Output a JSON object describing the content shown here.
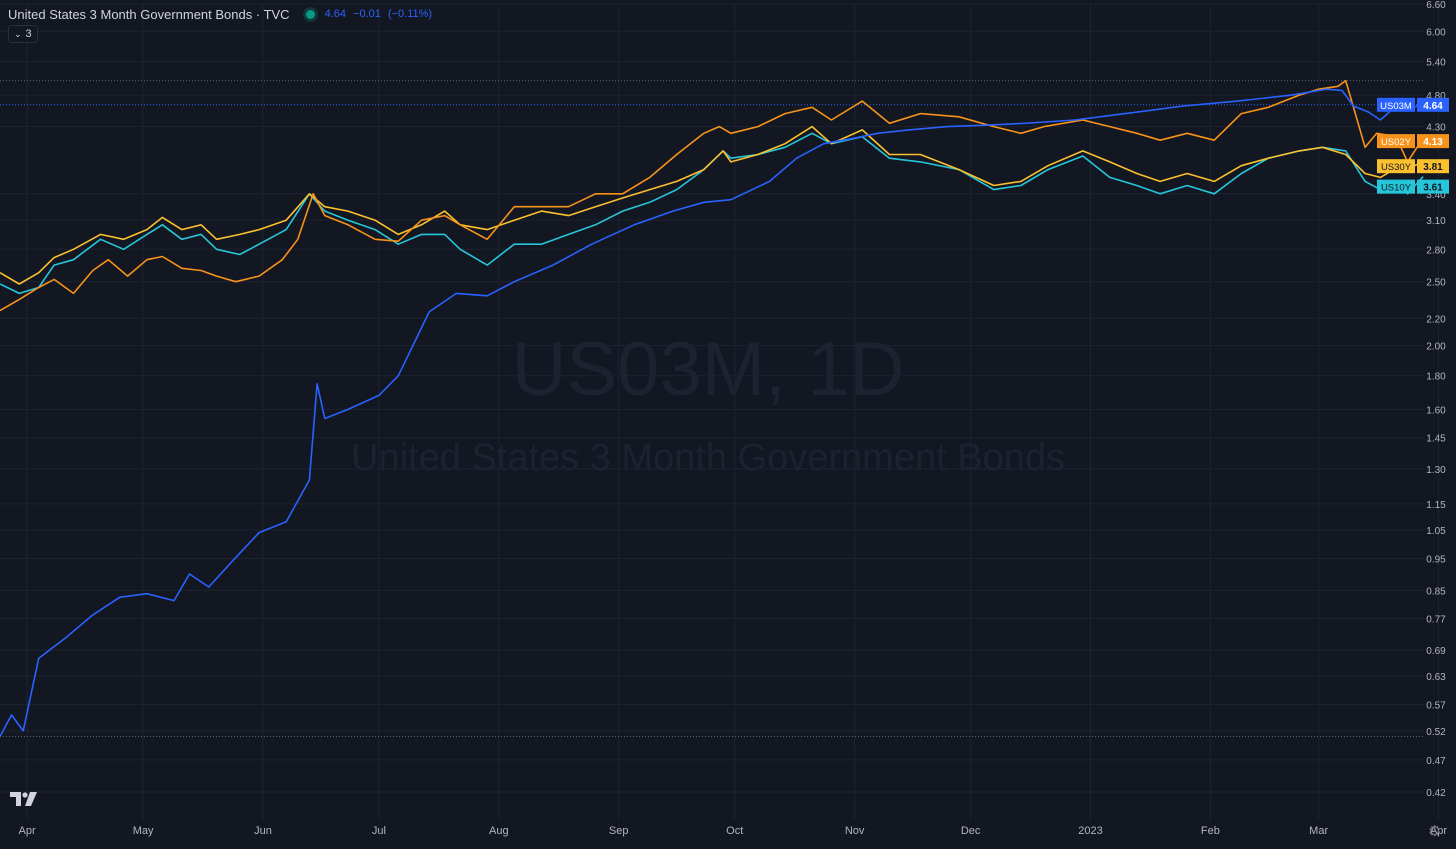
{
  "header": {
    "title": "United States 3 Month Government Bonds · TVC",
    "last": "4.64",
    "change": "−0.01",
    "change_pct": "(−0.11%)",
    "legend_count": "3"
  },
  "watermark": {
    "symbol": "US03M, 1D",
    "description": "United States 3 Month Government Bonds"
  },
  "colors": {
    "background": "#131722",
    "grid": "#1f2330",
    "axis_text": "#b2b5be",
    "US03M": "#2962ff",
    "US02Y": "#f7931a",
    "US30Y": "#fbc02d",
    "US10Y": "#26c6da"
  },
  "chart_data": {
    "type": "line",
    "y_scale": "log",
    "ylim": [
      0.4,
      6.6
    ],
    "y_ticks": [
      "6.60",
      "6.00",
      "5.40",
      "4.80",
      "4.30",
      "3.40",
      "3.10",
      "2.80",
      "2.50",
      "2.20",
      "2.00",
      "1.80",
      "1.60",
      "1.45",
      "1.30",
      "1.15",
      "1.05",
      "0.95",
      "0.85",
      "0.77",
      "0.69",
      "0.63",
      "0.57",
      "0.52",
      "0.47",
      "0.42"
    ],
    "x_ticks": [
      "Apr",
      "May",
      "Jun",
      "Jul",
      "Aug",
      "Sep",
      "Oct",
      "Nov",
      "Dec",
      "2023",
      "Feb",
      "Mar",
      "Apr"
    ],
    "x_range": [
      "2022-03-25",
      "2023-04-05"
    ],
    "series": [
      {
        "name": "US03M",
        "color": "#2962ff",
        "last": "4.64",
        "points": [
          [
            "2022-03-25",
            0.51
          ],
          [
            "2022-03-28",
            0.55
          ],
          [
            "2022-03-31",
            0.52
          ],
          [
            "2022-04-04",
            0.67
          ],
          [
            "2022-04-11",
            0.72
          ],
          [
            "2022-04-18",
            0.78
          ],
          [
            "2022-04-25",
            0.83
          ],
          [
            "2022-05-02",
            0.84
          ],
          [
            "2022-05-09",
            0.82
          ],
          [
            "2022-05-13",
            0.9
          ],
          [
            "2022-05-18",
            0.86
          ],
          [
            "2022-05-24",
            0.94
          ],
          [
            "2022-05-31",
            1.04
          ],
          [
            "2022-06-07",
            1.08
          ],
          [
            "2022-06-13",
            1.25
          ],
          [
            "2022-06-15",
            1.75
          ],
          [
            "2022-06-17",
            1.55
          ],
          [
            "2022-06-23",
            1.6
          ],
          [
            "2022-07-01",
            1.68
          ],
          [
            "2022-07-06",
            1.8
          ],
          [
            "2022-07-14",
            2.25
          ],
          [
            "2022-07-21",
            2.4
          ],
          [
            "2022-07-29",
            2.38
          ],
          [
            "2022-08-05",
            2.5
          ],
          [
            "2022-08-15",
            2.65
          ],
          [
            "2022-08-25",
            2.85
          ],
          [
            "2022-09-05",
            3.05
          ],
          [
            "2022-09-15",
            3.2
          ],
          [
            "2022-09-23",
            3.3
          ],
          [
            "2022-09-30",
            3.33
          ],
          [
            "2022-10-10",
            3.55
          ],
          [
            "2022-10-17",
            3.85
          ],
          [
            "2022-10-24",
            4.05
          ],
          [
            "2022-10-31",
            4.12
          ],
          [
            "2022-11-07",
            4.2
          ],
          [
            "2022-11-15",
            4.25
          ],
          [
            "2022-11-25",
            4.3
          ],
          [
            "2022-12-05",
            4.32
          ],
          [
            "2022-12-15",
            4.35
          ],
          [
            "2022-12-28",
            4.4
          ],
          [
            "2023-01-10",
            4.5
          ],
          [
            "2023-01-25",
            4.62
          ],
          [
            "2023-02-08",
            4.7
          ],
          [
            "2023-02-22",
            4.8
          ],
          [
            "2023-03-03",
            4.9
          ],
          [
            "2023-03-07",
            4.88
          ],
          [
            "2023-03-10",
            4.62
          ],
          [
            "2023-03-14",
            4.52
          ],
          [
            "2023-03-17",
            4.4
          ],
          [
            "2023-03-21",
            4.62
          ],
          [
            "2023-03-24",
            4.58
          ],
          [
            "2023-03-28",
            4.64
          ]
        ]
      },
      {
        "name": "US02Y",
        "color": "#f7931a",
        "last": "4.13",
        "points": [
          [
            "2022-03-25",
            2.26
          ],
          [
            "2022-03-30",
            2.35
          ],
          [
            "2022-04-04",
            2.45
          ],
          [
            "2022-04-08",
            2.52
          ],
          [
            "2022-04-13",
            2.4
          ],
          [
            "2022-04-18",
            2.6
          ],
          [
            "2022-04-22",
            2.7
          ],
          [
            "2022-04-27",
            2.55
          ],
          [
            "2022-05-02",
            2.7
          ],
          [
            "2022-05-06",
            2.73
          ],
          [
            "2022-05-11",
            2.62
          ],
          [
            "2022-05-16",
            2.6
          ],
          [
            "2022-05-20",
            2.55
          ],
          [
            "2022-05-25",
            2.5
          ],
          [
            "2022-05-31",
            2.55
          ],
          [
            "2022-06-06",
            2.7
          ],
          [
            "2022-06-10",
            2.9
          ],
          [
            "2022-06-14",
            3.4
          ],
          [
            "2022-06-17",
            3.15
          ],
          [
            "2022-06-23",
            3.05
          ],
          [
            "2022-06-30",
            2.9
          ],
          [
            "2022-07-06",
            2.88
          ],
          [
            "2022-07-12",
            3.1
          ],
          [
            "2022-07-18",
            3.15
          ],
          [
            "2022-07-22",
            3.05
          ],
          [
            "2022-07-29",
            2.9
          ],
          [
            "2022-08-05",
            3.25
          ],
          [
            "2022-08-12",
            3.25
          ],
          [
            "2022-08-19",
            3.25
          ],
          [
            "2022-08-26",
            3.4
          ],
          [
            "2022-09-02",
            3.4
          ],
          [
            "2022-09-09",
            3.6
          ],
          [
            "2022-09-16",
            3.9
          ],
          [
            "2022-09-23",
            4.2
          ],
          [
            "2022-09-27",
            4.3
          ],
          [
            "2022-09-30",
            4.2
          ],
          [
            "2022-10-07",
            4.3
          ],
          [
            "2022-10-14",
            4.5
          ],
          [
            "2022-10-21",
            4.6
          ],
          [
            "2022-10-26",
            4.4
          ],
          [
            "2022-11-03",
            4.7
          ],
          [
            "2022-11-10",
            4.35
          ],
          [
            "2022-11-18",
            4.5
          ],
          [
            "2022-11-28",
            4.45
          ],
          [
            "2022-12-07",
            4.3
          ],
          [
            "2022-12-14",
            4.2
          ],
          [
            "2022-12-20",
            4.3
          ],
          [
            "2022-12-30",
            4.4
          ],
          [
            "2023-01-06",
            4.3
          ],
          [
            "2023-01-13",
            4.2
          ],
          [
            "2023-01-19",
            4.1
          ],
          [
            "2023-01-26",
            4.2
          ],
          [
            "2023-02-02",
            4.1
          ],
          [
            "2023-02-09",
            4.5
          ],
          [
            "2023-02-16",
            4.6
          ],
          [
            "2023-02-24",
            4.8
          ],
          [
            "2023-03-01",
            4.9
          ],
          [
            "2023-03-06",
            4.95
          ],
          [
            "2023-03-08",
            5.05
          ],
          [
            "2023-03-10",
            4.6
          ],
          [
            "2023-03-13",
            4.0
          ],
          [
            "2023-03-16",
            4.2
          ],
          [
            "2023-03-21",
            4.15
          ],
          [
            "2023-03-24",
            3.8
          ],
          [
            "2023-03-28",
            4.13
          ]
        ]
      },
      {
        "name": "US30Y",
        "color": "#fbc02d",
        "last": "3.81",
        "points": [
          [
            "2022-03-25",
            2.58
          ],
          [
            "2022-03-30",
            2.48
          ],
          [
            "2022-04-04",
            2.58
          ],
          [
            "2022-04-08",
            2.72
          ],
          [
            "2022-04-13",
            2.8
          ],
          [
            "2022-04-20",
            2.95
          ],
          [
            "2022-04-26",
            2.9
          ],
          [
            "2022-05-02",
            3.0
          ],
          [
            "2022-05-06",
            3.13
          ],
          [
            "2022-05-11",
            3.0
          ],
          [
            "2022-05-16",
            3.05
          ],
          [
            "2022-05-20",
            2.9
          ],
          [
            "2022-05-26",
            2.95
          ],
          [
            "2022-05-31",
            3.0
          ],
          [
            "2022-06-07",
            3.1
          ],
          [
            "2022-06-13",
            3.4
          ],
          [
            "2022-06-17",
            3.25
          ],
          [
            "2022-06-23",
            3.2
          ],
          [
            "2022-06-30",
            3.1
          ],
          [
            "2022-07-06",
            2.95
          ],
          [
            "2022-07-12",
            3.05
          ],
          [
            "2022-07-18",
            3.2
          ],
          [
            "2022-07-22",
            3.05
          ],
          [
            "2022-07-29",
            3.0
          ],
          [
            "2022-08-05",
            3.1
          ],
          [
            "2022-08-12",
            3.2
          ],
          [
            "2022-08-19",
            3.15
          ],
          [
            "2022-08-26",
            3.25
          ],
          [
            "2022-09-02",
            3.35
          ],
          [
            "2022-09-09",
            3.45
          ],
          [
            "2022-09-16",
            3.55
          ],
          [
            "2022-09-23",
            3.7
          ],
          [
            "2022-09-28",
            3.95
          ],
          [
            "2022-09-30",
            3.8
          ],
          [
            "2022-10-07",
            3.9
          ],
          [
            "2022-10-14",
            4.05
          ],
          [
            "2022-10-21",
            4.3
          ],
          [
            "2022-10-26",
            4.05
          ],
          [
            "2022-11-03",
            4.25
          ],
          [
            "2022-11-10",
            3.9
          ],
          [
            "2022-11-18",
            3.9
          ],
          [
            "2022-11-28",
            3.7
          ],
          [
            "2022-12-07",
            3.5
          ],
          [
            "2022-12-14",
            3.55
          ],
          [
            "2022-12-21",
            3.75
          ],
          [
            "2022-12-30",
            3.95
          ],
          [
            "2023-01-06",
            3.8
          ],
          [
            "2023-01-13",
            3.65
          ],
          [
            "2023-01-19",
            3.55
          ],
          [
            "2023-01-26",
            3.65
          ],
          [
            "2023-02-02",
            3.55
          ],
          [
            "2023-02-09",
            3.75
          ],
          [
            "2023-02-16",
            3.85
          ],
          [
            "2023-02-24",
            3.95
          ],
          [
            "2023-03-02",
            4.0
          ],
          [
            "2023-03-08",
            3.9
          ],
          [
            "2023-03-13",
            3.65
          ],
          [
            "2023-03-17",
            3.6
          ],
          [
            "2023-03-22",
            3.75
          ],
          [
            "2023-03-24",
            3.7
          ],
          [
            "2023-03-28",
            3.81
          ]
        ]
      },
      {
        "name": "US10Y",
        "color": "#26c6da",
        "last": "3.61",
        "points": [
          [
            "2022-03-25",
            2.48
          ],
          [
            "2022-03-30",
            2.4
          ],
          [
            "2022-04-04",
            2.45
          ],
          [
            "2022-04-08",
            2.65
          ],
          [
            "2022-04-13",
            2.7
          ],
          [
            "2022-04-20",
            2.9
          ],
          [
            "2022-04-26",
            2.8
          ],
          [
            "2022-05-02",
            2.95
          ],
          [
            "2022-05-06",
            3.05
          ],
          [
            "2022-05-11",
            2.9
          ],
          [
            "2022-05-16",
            2.95
          ],
          [
            "2022-05-20",
            2.8
          ],
          [
            "2022-05-26",
            2.75
          ],
          [
            "2022-05-31",
            2.85
          ],
          [
            "2022-06-07",
            3.0
          ],
          [
            "2022-06-13",
            3.4
          ],
          [
            "2022-06-17",
            3.2
          ],
          [
            "2022-06-23",
            3.1
          ],
          [
            "2022-06-30",
            3.0
          ],
          [
            "2022-07-06",
            2.85
          ],
          [
            "2022-07-12",
            2.95
          ],
          [
            "2022-07-18",
            2.95
          ],
          [
            "2022-07-22",
            2.8
          ],
          [
            "2022-07-29",
            2.65
          ],
          [
            "2022-08-05",
            2.85
          ],
          [
            "2022-08-12",
            2.85
          ],
          [
            "2022-08-19",
            2.95
          ],
          [
            "2022-08-26",
            3.05
          ],
          [
            "2022-09-02",
            3.2
          ],
          [
            "2022-09-09",
            3.3
          ],
          [
            "2022-09-16",
            3.45
          ],
          [
            "2022-09-23",
            3.7
          ],
          [
            "2022-09-28",
            3.95
          ],
          [
            "2022-09-30",
            3.85
          ],
          [
            "2022-10-07",
            3.9
          ],
          [
            "2022-10-14",
            4.0
          ],
          [
            "2022-10-21",
            4.2
          ],
          [
            "2022-10-26",
            4.05
          ],
          [
            "2022-11-03",
            4.15
          ],
          [
            "2022-11-10",
            3.85
          ],
          [
            "2022-11-18",
            3.8
          ],
          [
            "2022-11-28",
            3.7
          ],
          [
            "2022-12-07",
            3.45
          ],
          [
            "2022-12-14",
            3.5
          ],
          [
            "2022-12-21",
            3.7
          ],
          [
            "2022-12-30",
            3.88
          ],
          [
            "2023-01-06",
            3.6
          ],
          [
            "2023-01-13",
            3.5
          ],
          [
            "2023-01-19",
            3.4
          ],
          [
            "2023-01-26",
            3.5
          ],
          [
            "2023-02-02",
            3.4
          ],
          [
            "2023-02-09",
            3.65
          ],
          [
            "2023-02-16",
            3.85
          ],
          [
            "2023-02-24",
            3.95
          ],
          [
            "2023-03-02",
            4.0
          ],
          [
            "2023-03-08",
            3.95
          ],
          [
            "2023-03-13",
            3.55
          ],
          [
            "2023-03-17",
            3.45
          ],
          [
            "2023-03-22",
            3.55
          ],
          [
            "2023-03-24",
            3.4
          ],
          [
            "2023-03-28",
            3.61
          ]
        ]
      }
    ]
  }
}
